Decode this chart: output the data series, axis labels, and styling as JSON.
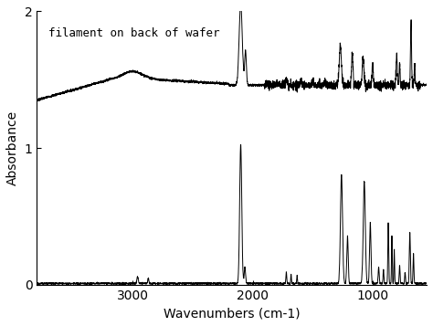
{
  "title": "",
  "xlabel": "Wavenumbers (cm-1)",
  "ylabel": "Absorbance",
  "annotation": "filament on back of wafer",
  "xlim": [
    3800,
    550
  ],
  "ylim": [
    0,
    2.0
  ],
  "yticks": [
    0,
    1,
    2
  ],
  "xticks": [
    3000,
    2000,
    1000
  ],
  "background_color": "#ffffff",
  "line_color": "#000000",
  "figsize": [
    4.74,
    3.57
  ],
  "dpi": 100
}
